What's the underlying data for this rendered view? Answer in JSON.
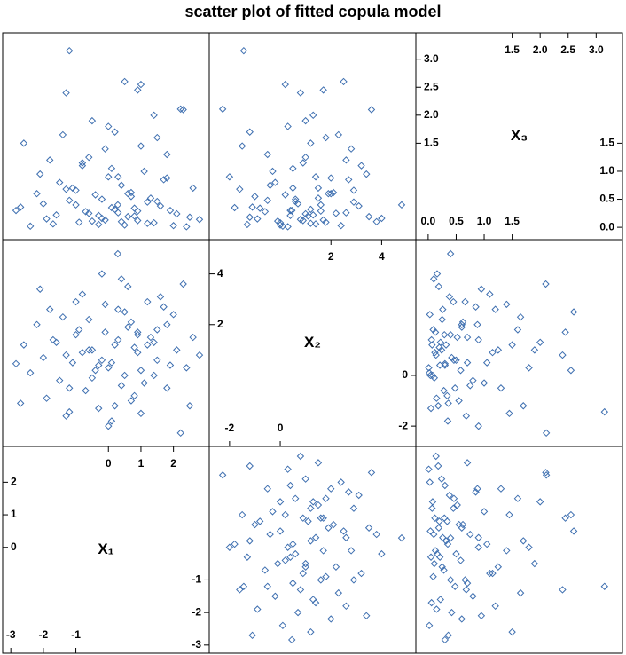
{
  "chart_data": {
    "type": "scatter-matrix",
    "title": "scatter plot of fitted copula model",
    "color": "#3e6fb0",
    "variables": [
      {
        "name": "X₁",
        "lim": [
          -3.25,
          3.1
        ],
        "ticks_lower": [
          -3,
          -2,
          -1
        ],
        "ticks_upper": [
          0,
          1,
          2
        ],
        "values": [
          -1.2,
          -2.84,
          2.22,
          0.29,
          -1.3,
          0.5,
          1.0,
          0.9,
          2.3,
          -2.6,
          -1.8,
          -0.5,
          0.0,
          1.5,
          1.8,
          -0.8,
          0.3,
          -1.5,
          2.6,
          -2.2,
          0.7,
          -0.2,
          1.2,
          -1.0,
          0.1,
          1.9,
          -0.6,
          0.8,
          -1.9,
          0.4,
          1.4,
          -0.3,
          2.0,
          -2.4,
          0.6,
          -1.1,
          1.1,
          -0.1,
          0.9,
          -1.6,
          2.5,
          -0.7,
          0.2,
          1.6,
          -2.0,
          0.0,
          1.3,
          -0.4,
          0.7,
          -1.3,
          2.8,
          -0.9,
          0.4,
          1.7,
          -2.1,
          0.1,
          -0.6,
          1.0,
          -1.4,
          0.5,
          2.1,
          -0.2,
          0.8,
          -1.7,
          1.5,
          -0.5,
          0.3,
          -2.7,
          1.2,
          0.6,
          -0.8,
          1.8,
          -1.2,
          0.9,
          2.4,
          -0.1,
          0.2,
          -1.0,
          1.4,
          -0.3
        ]
      },
      {
        "name": "X₂",
        "lim": [
          -2.8,
          5.35
        ],
        "ticks_lower": [
          -2,
          0
        ],
        "ticks_upper": [
          2,
          4
        ],
        "values": [
          -1.44,
          0.46,
          -2.27,
          4.79,
          0.8,
          2.5,
          0.2,
          1.7,
          3.6,
          1.2,
          2.6,
          1.0,
          0.3,
          1.8,
          -0.5,
          3.2,
          1.4,
          -0.2,
          1.5,
          2.0,
          -1.0,
          0.6,
          2.9,
          1.6,
          -1.8,
          0.4,
          2.2,
          1.1,
          -0.9,
          3.8,
          0.0,
          -1.3,
          2.4,
          0.1,
          1.9,
          0.5,
          -0.3,
          2.8,
          0.9,
          1.3,
          -1.2,
          -0.6,
          1.2,
          3.1,
          0.7,
          -2.0,
          1.5,
          0.2,
          2.1,
          -1.6,
          0.8,
          1.8,
          -0.4,
          2.7,
          3.4,
          0.5,
          1.0,
          -1.5,
          2.3,
          0.0,
          1.0,
          4.0,
          -0.8,
          1.4,
          0.6,
          -0.1,
          2.6,
          -1.1,
          1.2,
          3.5,
          0.9,
          2.0,
          -0.5,
          1.6,
          0.3,
          1.7,
          -1.2,
          2.9,
          1.3,
          0.4
        ]
      },
      {
        "name": "X₃",
        "lim": [
          -0.22,
          3.47
        ],
        "ticks_lower": [
          {
            "value": 0,
            "label": "0.0"
          },
          {
            "value": 0.5,
            "label": "0.5"
          },
          {
            "value": 1,
            "label": "1.0"
          },
          {
            "value": 1.5,
            "label": "1.5"
          }
        ],
        "ticks_upper": [
          {
            "value": 1.5,
            "label": "1.5"
          },
          {
            "value": 2,
            "label": "2.0"
          },
          {
            "value": 2.5,
            "label": "2.5"
          },
          {
            "value": 3,
            "label": "3.0"
          }
        ],
        "values": [
          3.15,
          0.3,
          2.11,
          0.4,
          2.4,
          2.6,
          2.55,
          2.45,
          2.1,
          1.5,
          1.2,
          1.9,
          1.8,
          1.6,
          1.3,
          1.1,
          0.9,
          0.8,
          0.7,
          0.6,
          0.55,
          0.5,
          0.45,
          0.4,
          0.35,
          0.3,
          0.25,
          0.2,
          0.15,
          0.1,
          0.08,
          0.05,
          0.03,
          0.02,
          0.6,
          0.7,
          1.0,
          1.4,
          0.12,
          0.22,
          0.18,
          0.28,
          0.32,
          0.38,
          0.42,
          0.9,
          0.52,
          0.58,
          0.62,
          0.68,
          0.14,
          0.09,
          0.75,
          0.85,
          0.95,
          1.05,
          1.25,
          1.45,
          1.65,
          0.04,
          0.24,
          0.16,
          0.34,
          0.06,
          0.46,
          0.11,
          0.26,
          0.36,
          0.07,
          0.19,
          1.15,
          0.88,
          0.48,
          0.29,
          0.01,
          0.13,
          1.7,
          0.66,
          2.0,
          0.21
        ]
      }
    ]
  }
}
